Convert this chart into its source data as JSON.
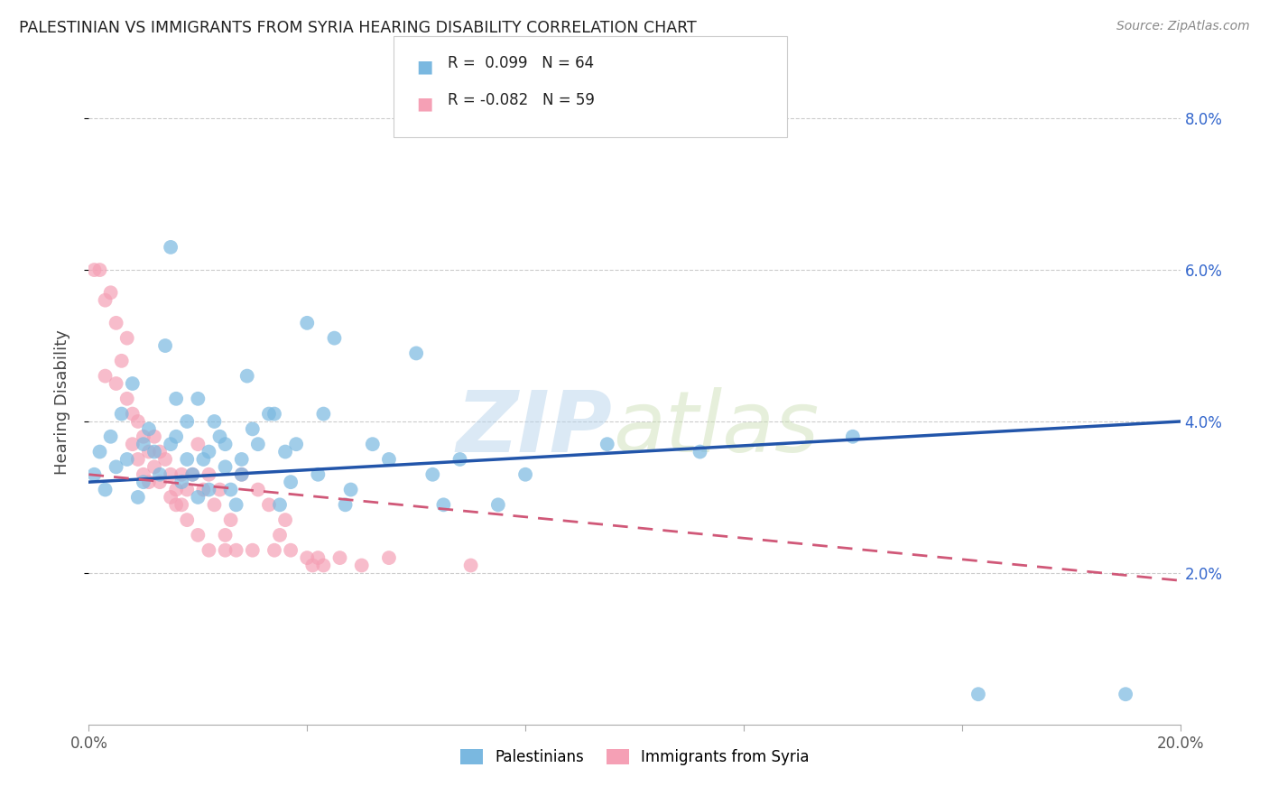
{
  "title": "PALESTINIAN VS IMMIGRANTS FROM SYRIA HEARING DISABILITY CORRELATION CHART",
  "source": "Source: ZipAtlas.com",
  "ylabel": "Hearing Disability",
  "xlim": [
    0.0,
    0.2
  ],
  "ylim": [
    0.0,
    0.085
  ],
  "yticks": [
    0.02,
    0.04,
    0.06,
    0.08
  ],
  "xticks": [
    0.0,
    0.04,
    0.08,
    0.12,
    0.16,
    0.2
  ],
  "blue_color": "#7ab8e0",
  "pink_color": "#f5a0b5",
  "trend_blue_color": "#2255aa",
  "trend_pink_color": "#d05878",
  "legend_R1": "0.099",
  "legend_N1": "64",
  "legend_R2": "-0.082",
  "legend_N2": "59",
  "legend_label1": "Palestinians",
  "legend_label2": "Immigrants from Syria",
  "watermark_zip": "ZIP",
  "watermark_atlas": "atlas",
  "background_color": "#ffffff",
  "blue_scatter": [
    [
      0.001,
      0.033
    ],
    [
      0.002,
      0.036
    ],
    [
      0.003,
      0.031
    ],
    [
      0.004,
      0.038
    ],
    [
      0.005,
      0.034
    ],
    [
      0.006,
      0.041
    ],
    [
      0.007,
      0.035
    ],
    [
      0.008,
      0.045
    ],
    [
      0.009,
      0.03
    ],
    [
      0.01,
      0.037
    ],
    [
      0.01,
      0.032
    ],
    [
      0.011,
      0.039
    ],
    [
      0.012,
      0.036
    ],
    [
      0.013,
      0.033
    ],
    [
      0.014,
      0.05
    ],
    [
      0.015,
      0.063
    ],
    [
      0.015,
      0.037
    ],
    [
      0.016,
      0.043
    ],
    [
      0.016,
      0.038
    ],
    [
      0.017,
      0.032
    ],
    [
      0.018,
      0.035
    ],
    [
      0.018,
      0.04
    ],
    [
      0.019,
      0.033
    ],
    [
      0.02,
      0.03
    ],
    [
      0.02,
      0.043
    ],
    [
      0.021,
      0.035
    ],
    [
      0.022,
      0.031
    ],
    [
      0.022,
      0.036
    ],
    [
      0.023,
      0.04
    ],
    [
      0.024,
      0.038
    ],
    [
      0.025,
      0.034
    ],
    [
      0.025,
      0.037
    ],
    [
      0.026,
      0.031
    ],
    [
      0.027,
      0.029
    ],
    [
      0.028,
      0.035
    ],
    [
      0.028,
      0.033
    ],
    [
      0.029,
      0.046
    ],
    [
      0.03,
      0.039
    ],
    [
      0.031,
      0.037
    ],
    [
      0.033,
      0.041
    ],
    [
      0.034,
      0.041
    ],
    [
      0.035,
      0.029
    ],
    [
      0.036,
      0.036
    ],
    [
      0.037,
      0.032
    ],
    [
      0.038,
      0.037
    ],
    [
      0.04,
      0.053
    ],
    [
      0.042,
      0.033
    ],
    [
      0.043,
      0.041
    ],
    [
      0.045,
      0.051
    ],
    [
      0.047,
      0.029
    ],
    [
      0.048,
      0.031
    ],
    [
      0.052,
      0.037
    ],
    [
      0.055,
      0.035
    ],
    [
      0.06,
      0.049
    ],
    [
      0.063,
      0.033
    ],
    [
      0.065,
      0.029
    ],
    [
      0.068,
      0.035
    ],
    [
      0.075,
      0.029
    ],
    [
      0.08,
      0.033
    ],
    [
      0.095,
      0.037
    ],
    [
      0.112,
      0.036
    ],
    [
      0.14,
      0.038
    ],
    [
      0.163,
      0.004
    ],
    [
      0.19,
      0.004
    ]
  ],
  "pink_scatter": [
    [
      0.001,
      0.06
    ],
    [
      0.002,
      0.06
    ],
    [
      0.003,
      0.056
    ],
    [
      0.003,
      0.046
    ],
    [
      0.004,
      0.057
    ],
    [
      0.005,
      0.053
    ],
    [
      0.005,
      0.045
    ],
    [
      0.006,
      0.048
    ],
    [
      0.007,
      0.051
    ],
    [
      0.007,
      0.043
    ],
    [
      0.008,
      0.041
    ],
    [
      0.008,
      0.037
    ],
    [
      0.009,
      0.04
    ],
    [
      0.009,
      0.035
    ],
    [
      0.01,
      0.038
    ],
    [
      0.01,
      0.033
    ],
    [
      0.011,
      0.036
    ],
    [
      0.011,
      0.032
    ],
    [
      0.012,
      0.034
    ],
    [
      0.012,
      0.038
    ],
    [
      0.013,
      0.036
    ],
    [
      0.013,
      0.032
    ],
    [
      0.014,
      0.035
    ],
    [
      0.015,
      0.033
    ],
    [
      0.015,
      0.03
    ],
    [
      0.016,
      0.031
    ],
    [
      0.016,
      0.029
    ],
    [
      0.017,
      0.033
    ],
    [
      0.017,
      0.029
    ],
    [
      0.018,
      0.031
    ],
    [
      0.018,
      0.027
    ],
    [
      0.019,
      0.033
    ],
    [
      0.02,
      0.037
    ],
    [
      0.02,
      0.025
    ],
    [
      0.021,
      0.031
    ],
    [
      0.022,
      0.033
    ],
    [
      0.022,
      0.023
    ],
    [
      0.023,
      0.029
    ],
    [
      0.024,
      0.031
    ],
    [
      0.025,
      0.025
    ],
    [
      0.025,
      0.023
    ],
    [
      0.026,
      0.027
    ],
    [
      0.027,
      0.023
    ],
    [
      0.028,
      0.033
    ],
    [
      0.03,
      0.023
    ],
    [
      0.031,
      0.031
    ],
    [
      0.033,
      0.029
    ],
    [
      0.034,
      0.023
    ],
    [
      0.035,
      0.025
    ],
    [
      0.036,
      0.027
    ],
    [
      0.037,
      0.023
    ],
    [
      0.04,
      0.022
    ],
    [
      0.041,
      0.021
    ],
    [
      0.042,
      0.022
    ],
    [
      0.043,
      0.021
    ],
    [
      0.046,
      0.022
    ],
    [
      0.05,
      0.021
    ],
    [
      0.055,
      0.022
    ],
    [
      0.07,
      0.021
    ]
  ],
  "blue_trend_x": [
    0.0,
    0.2
  ],
  "blue_trend_y": [
    0.032,
    0.04
  ],
  "pink_trend_x": [
    0.0,
    0.2
  ],
  "pink_trend_y": [
    0.033,
    0.019
  ]
}
